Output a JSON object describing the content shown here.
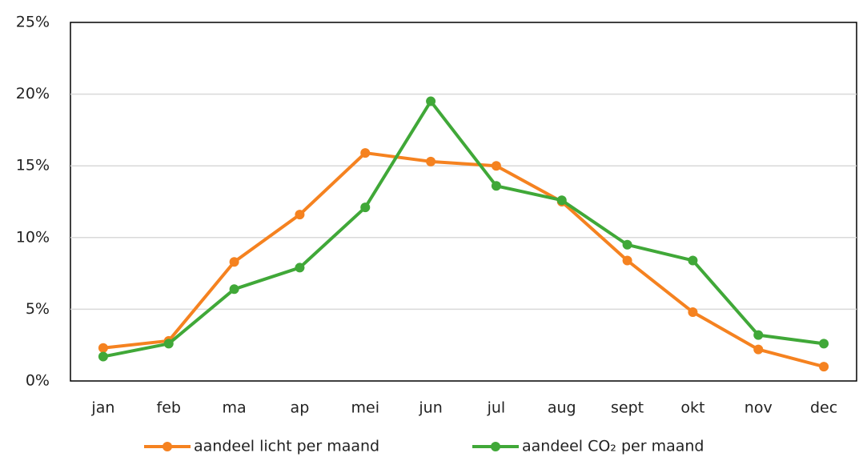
{
  "chart_data": {
    "type": "line",
    "categories": [
      "jan",
      "feb",
      "ma",
      "ap",
      "mei",
      "jun",
      "jul",
      "aug",
      "sept",
      "okt",
      "nov",
      "dec"
    ],
    "series": [
      {
        "name": "aandeel licht per maand",
        "color": "#f58220",
        "values": [
          2.3,
          2.8,
          8.3,
          11.6,
          15.9,
          15.3,
          15.0,
          12.5,
          8.4,
          4.8,
          2.2,
          1.0
        ]
      },
      {
        "name": "aandeel CO₂ per maand",
        "color": "#40a838",
        "values": [
          1.7,
          2.6,
          6.4,
          7.9,
          12.1,
          19.5,
          13.6,
          12.6,
          9.5,
          8.4,
          3.2,
          2.6
        ]
      }
    ],
    "ylim": [
      0,
      25
    ],
    "yticks": [
      {
        "value": 0,
        "label": "0%"
      },
      {
        "value": 5,
        "label": "5%"
      },
      {
        "value": 10,
        "label": "10%"
      },
      {
        "value": 15,
        "label": "15%"
      },
      {
        "value": 20,
        "label": "20%"
      },
      {
        "value": 25,
        "label": "25%"
      }
    ],
    "grid": true,
    "legend": "bottom"
  }
}
